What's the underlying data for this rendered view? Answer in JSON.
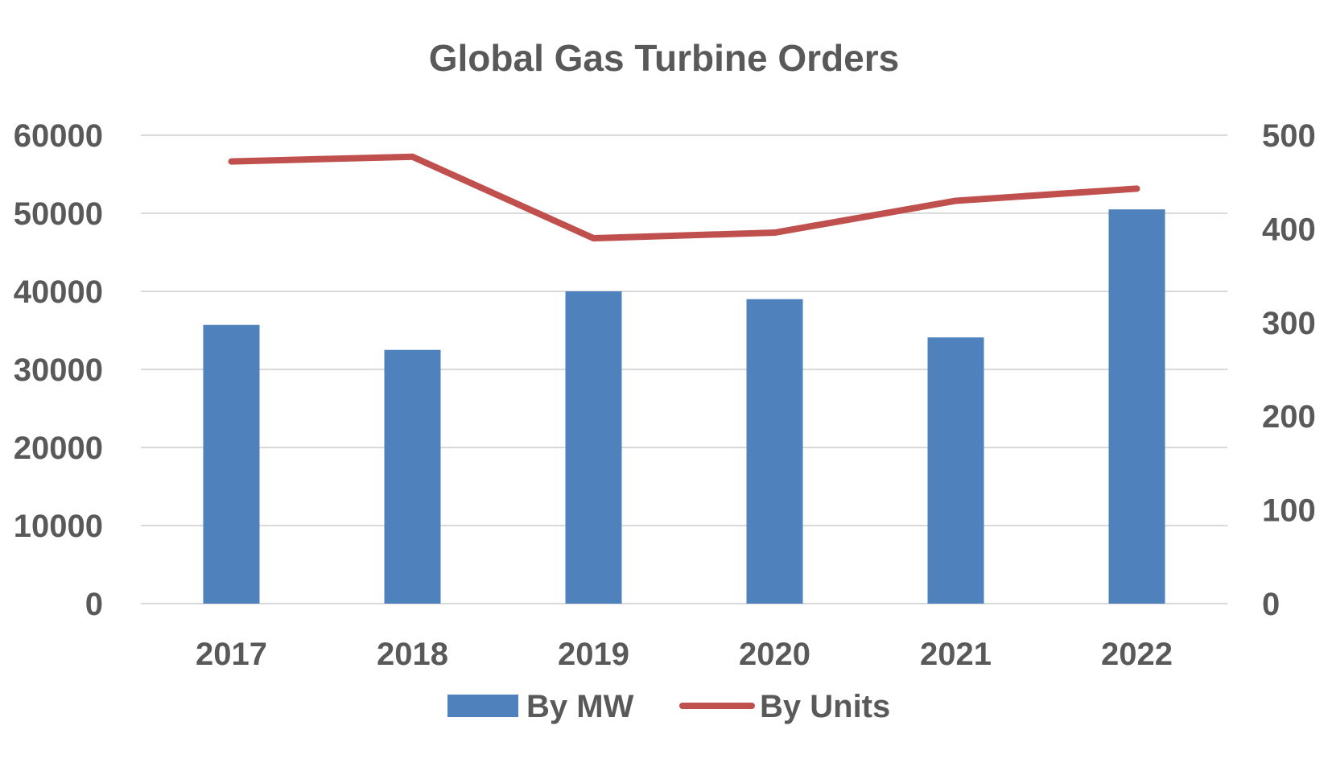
{
  "chart_data": {
    "type": "bar",
    "title": "Global Gas Turbine Orders",
    "categories": [
      "2017",
      "2018",
      "2019",
      "2020",
      "2021",
      "2022"
    ],
    "series": [
      {
        "name": "By MW",
        "type": "bar",
        "axis": "left",
        "color": "#4f81bd",
        "values": [
          35700,
          32500,
          40000,
          39000,
          34100,
          50500
        ]
      },
      {
        "name": "By Units",
        "type": "line",
        "axis": "right",
        "color": "#c0504d",
        "values": [
          472,
          477,
          390,
          396,
          430,
          443
        ]
      }
    ],
    "y_left": {
      "min": 0,
      "max": 60000,
      "ticks": [
        "0",
        "10000",
        "20000",
        "30000",
        "40000",
        "50000",
        "60000"
      ]
    },
    "y_right": {
      "min": 0,
      "max": 500,
      "ticks": [
        "0",
        "100",
        "200",
        "300",
        "400",
        "500"
      ]
    },
    "grid": true,
    "legend_position": "bottom",
    "gridline_color": "#d9d9d9",
    "text_color": "#595959"
  }
}
